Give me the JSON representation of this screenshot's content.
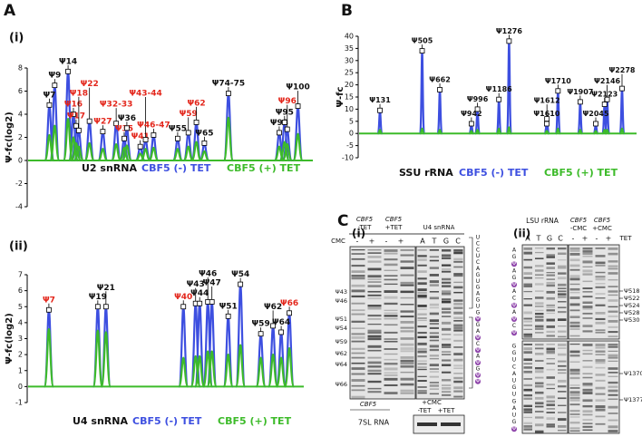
{
  "panel_letters": [
    "A",
    "B",
    "C"
  ],
  "chart_data": [
    {
      "type": "line",
      "panel": "(i)",
      "ylabel": "Ψ-fc(log2)",
      "ylim": [
        -4,
        8
      ],
      "yticks": [
        -4,
        -2,
        0,
        2,
        4,
        6,
        8
      ],
      "legend_title": "U2 snRNA",
      "x": [
        7,
        9,
        14,
        16,
        17,
        18,
        22,
        27,
        32,
        35,
        36,
        41,
        43,
        46,
        55,
        59,
        62,
        65,
        74,
        93,
        95,
        96,
        100
      ],
      "peak_labels": [
        "Ψ7",
        "Ψ9",
        "Ψ14",
        "Ψ16",
        "Ψ17",
        "Ψ18",
        "Ψ22",
        "Ψ27",
        "Ψ32-33",
        "Ψ35",
        "Ψ36",
        "Ψ41",
        "Ψ43-44",
        "Ψ46-47",
        "Ψ55",
        "Ψ59",
        "Ψ62",
        "Ψ65",
        "Ψ74-75",
        "Ψ93",
        "Ψ95",
        "Ψ96",
        "Ψ100"
      ],
      "label_colors": [
        "#111111",
        "#111111",
        "#111111",
        "#e3261b",
        "#e3261b",
        "#e3261b",
        "#e3261b",
        "#e3261b",
        "#e3261b",
        "#e3261b",
        "#111111",
        "#e3261b",
        "#e3261b",
        "#e3261b",
        "#111111",
        "#e3261b",
        "#e3261b",
        "#111111",
        "#111111",
        "#111111",
        "#111111",
        "#e3261b",
        "#111111"
      ],
      "series": [
        {
          "name": "CBF5 (-) TET",
          "color": "#3d4fe0",
          "values": [
            4.8,
            6.5,
            7.7,
            4.0,
            3.0,
            2.6,
            3.4,
            2.5,
            3.2,
            1.9,
            2.8,
            1.2,
            1.8,
            2.2,
            1.9,
            2.4,
            3.3,
            1.5,
            5.8,
            2.4,
            3.3,
            2.7,
            4.7
          ]
        },
        {
          "name": "CBF5 (+) TET",
          "color": "#3dbb2a",
          "values": [
            2.2,
            3.0,
            3.6,
            2.0,
            1.5,
            1.2,
            1.5,
            1.0,
            1.4,
            1.1,
            1.3,
            0.6,
            1.0,
            1.1,
            1.0,
            1.2,
            1.6,
            0.8,
            3.7,
            1.2,
            1.6,
            1.4,
            2.3
          ]
        }
      ]
    },
    {
      "type": "line",
      "panel": "(ii)",
      "ylabel": "Ψ-fc(log2)",
      "ylim": [
        -1,
        7
      ],
      "yticks": [
        -1,
        0,
        1,
        2,
        3,
        4,
        5,
        6,
        7
      ],
      "legend_title": "U4 snRNA",
      "x": [
        7,
        19,
        21,
        40,
        43,
        44,
        46,
        47,
        51,
        54,
        59,
        62,
        64,
        66
      ],
      "peak_labels": [
        "Ψ7",
        "Ψ19",
        "Ψ21",
        "Ψ40",
        "Ψ43",
        "Ψ44",
        "Ψ46",
        "Ψ47",
        "Ψ51",
        "Ψ54",
        "Ψ59",
        "Ψ62",
        "Ψ64",
        "Ψ66"
      ],
      "label_colors": [
        "#e3261b",
        "#111111",
        "#111111",
        "#e3261b",
        "#111111",
        "#111111",
        "#111111",
        "#111111",
        "#111111",
        "#111111",
        "#111111",
        "#111111",
        "#111111",
        "#e3261b"
      ],
      "series": [
        {
          "name": "CBF5 (-) TET",
          "color": "#3d4fe0",
          "values": [
            4.8,
            5.0,
            5.0,
            5.0,
            5.2,
            5.2,
            5.3,
            5.3,
            4.4,
            6.4,
            3.3,
            3.8,
            3.4,
            4.6
          ]
        },
        {
          "name": "CBF5 (+) TET",
          "color": "#3dbb2a",
          "values": [
            3.6,
            3.5,
            3.4,
            1.8,
            1.9,
            1.9,
            2.2,
            2.2,
            2.0,
            2.6,
            1.8,
            2.0,
            1.8,
            2.4
          ]
        }
      ]
    },
    {
      "type": "line",
      "ylabel": "Ψ-fc",
      "ylim": [
        -10,
        40
      ],
      "yticks": [
        -10,
        -5,
        0,
        5,
        10,
        15,
        20,
        25,
        30,
        35,
        40
      ],
      "legend_title": "SSU rRNA",
      "x": [
        131,
        505,
        662,
        942,
        996,
        1186,
        1276,
        1610,
        1612,
        1710,
        1907,
        2045,
        2123,
        2146,
        2278
      ],
      "peak_labels": [
        "Ψ131",
        "Ψ505",
        "Ψ662",
        "Ψ942",
        "Ψ996",
        "Ψ1186",
        "Ψ1276",
        "Ψ1610",
        "Ψ1612",
        "Ψ1710",
        "Ψ1907",
        "Ψ2045",
        "Ψ2123",
        "Ψ2146",
        "Ψ2278"
      ],
      "label_colors": [
        "#111111",
        "#111111",
        "#111111",
        "#111111",
        "#111111",
        "#111111",
        "#111111",
        "#111111",
        "#111111",
        "#111111",
        "#111111",
        "#111111",
        "#111111",
        "#111111",
        "#111111"
      ],
      "series": [
        {
          "name": "CBF5 (-) TET",
          "color": "#3d4fe0",
          "values": [
            9.5,
            34,
            18,
            4,
            10,
            14,
            38,
            4,
            6,
            17.5,
            13,
            4,
            12,
            14,
            18.5
          ]
        },
        {
          "name": "CBF5 (+) TET",
          "color": "#3dbb2a",
          "values": [
            1.5,
            2,
            1.5,
            1,
            1.5,
            2,
            2.5,
            1,
            1,
            2,
            1.5,
            1,
            1.5,
            1.5,
            2
          ]
        }
      ]
    }
  ],
  "gel_i": {
    "panel": "(i)",
    "groups": [
      {
        "gene": "CBF5",
        "condition": "-TET"
      },
      {
        "gene": "CBF5",
        "condition": "+TET"
      }
    ],
    "ladder_title": "U4 snRNA",
    "cmc": "CMC",
    "lanes": [
      "-",
      "+",
      "-",
      "+"
    ],
    "ladder": [
      "A",
      "T",
      "G",
      "C"
    ],
    "psi": [
      "Ψ43",
      "Ψ46",
      "Ψ51",
      "Ψ54",
      "Ψ59",
      "Ψ62",
      "Ψ64",
      "Ψ66"
    ],
    "sequence": [
      "U",
      "C",
      "C",
      "U",
      "C",
      "A",
      "G",
      "U",
      "G",
      "A",
      "G",
      "U",
      "G",
      "Ψ",
      "G",
      "A",
      "Ψ",
      "C",
      "Ψ",
      "A",
      "Ψ",
      "G",
      "Ψ",
      "Ψ"
    ],
    "loading": {
      "gene": "CBF5",
      "treatment": "+CMC",
      "lanes": [
        "-TET",
        "+TET"
      ],
      "label": "7SL RNA"
    }
  },
  "gel_ii": {
    "panel": "(ii)",
    "title": "LSU rRNA",
    "groups": [
      {
        "gene": "CBF5",
        "condition": "-CMC"
      },
      {
        "gene": "CBF5",
        "condition": "+CMC"
      }
    ],
    "ladder": [
      "A",
      "T",
      "G",
      "C"
    ],
    "lanes": [
      "-",
      "+",
      "-",
      "+"
    ],
    "tet": "TET",
    "psi": [
      "Ψ518",
      "Ψ522",
      "Ψ524",
      "Ψ528",
      "Ψ530",
      "Ψ1370",
      "Ψ1377"
    ],
    "sequence_upper": [
      "A",
      "G",
      "Ψ",
      "A",
      "G",
      "Ψ",
      "A",
      "C",
      "Ψ",
      "A",
      "Ψ",
      "C",
      "Ψ"
    ],
    "sequence_lower": [
      "G",
      "G",
      "U",
      "C",
      "A",
      "U",
      "G",
      "U",
      "G",
      "A",
      "U",
      "G",
      "Ψ"
    ]
  }
}
